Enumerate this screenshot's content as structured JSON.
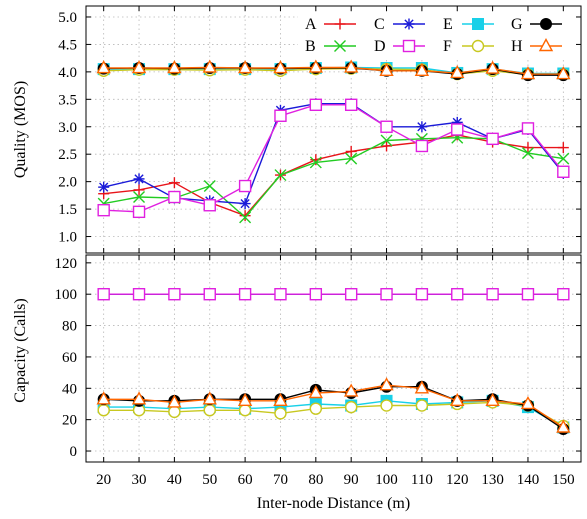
{
  "chart_data": [
    {
      "type": "line",
      "ylabel": "Quality (MOS)",
      "xlabel": "",
      "x": [
        20,
        30,
        40,
        50,
        60,
        70,
        80,
        90,
        100,
        110,
        120,
        130,
        140,
        150
      ],
      "xlim": [
        15,
        155
      ],
      "ylim": [
        0.7,
        5.2
      ],
      "yticks": [
        "1.0",
        "1.5",
        "2.0",
        "2.5",
        "3.0",
        "3.5",
        "4.0",
        "4.5",
        "5.0"
      ],
      "grid": true,
      "legend_position": "top-right",
      "series": [
        {
          "name": "A",
          "color": "#e8141a",
          "marker": "plus",
          "values": [
            1.78,
            1.85,
            1.98,
            1.62,
            1.38,
            2.12,
            2.4,
            2.55,
            2.65,
            2.72,
            2.85,
            2.72,
            2.62,
            2.62
          ]
        },
        {
          "name": "B",
          "color": "#22cc22",
          "marker": "x",
          "values": [
            1.6,
            1.72,
            1.7,
            1.92,
            1.35,
            2.12,
            2.35,
            2.42,
            2.75,
            2.78,
            2.8,
            2.78,
            2.52,
            2.42
          ]
        },
        {
          "name": "C",
          "color": "#1a1ad8",
          "marker": "star",
          "values": [
            1.9,
            2.05,
            1.7,
            1.65,
            1.6,
            3.3,
            3.42,
            3.42,
            3.0,
            3.0,
            3.08,
            2.78,
            2.95,
            2.15
          ]
        },
        {
          "name": "D",
          "color": "#e020e0",
          "marker": "square",
          "values": [
            1.48,
            1.45,
            1.72,
            1.57,
            1.92,
            3.2,
            3.4,
            3.4,
            3.0,
            2.65,
            2.95,
            2.78,
            2.97,
            2.18
          ]
        },
        {
          "name": "E",
          "color": "#18d0e8",
          "marker": "filled-square",
          "values": [
            4.05,
            4.05,
            4.05,
            4.05,
            4.05,
            4.05,
            4.07,
            4.08,
            4.07,
            4.07,
            3.98,
            4.05,
            3.97,
            3.97
          ]
        },
        {
          "name": "F",
          "color": "#c8c820",
          "marker": "circle",
          "values": [
            4.02,
            4.04,
            4.04,
            4.03,
            4.04,
            4.02,
            4.05,
            4.06,
            4.05,
            4.04,
            3.96,
            4.02,
            3.95,
            3.95
          ]
        },
        {
          "name": "G",
          "color": "#000000",
          "marker": "filled-circle",
          "values": [
            4.06,
            4.07,
            4.06,
            4.07,
            4.07,
            4.06,
            4.07,
            4.07,
            4.02,
            4.02,
            3.96,
            4.05,
            3.94,
            3.94
          ]
        },
        {
          "name": "H",
          "color": "#ff6600",
          "marker": "triangle",
          "values": [
            4.07,
            4.07,
            4.07,
            4.08,
            4.07,
            4.07,
            4.08,
            4.08,
            4.02,
            4.02,
            3.98,
            4.06,
            3.96,
            3.96
          ]
        }
      ]
    },
    {
      "type": "line",
      "ylabel": "Capacity (Calls)",
      "xlabel": "Inter-node Distance (m)",
      "x": [
        20,
        30,
        40,
        50,
        60,
        70,
        80,
        90,
        100,
        110,
        120,
        130,
        140,
        150
      ],
      "xticks": [
        "20",
        "30",
        "40",
        "50",
        "60",
        "70",
        "80",
        "90",
        "100",
        "110",
        "120",
        "130",
        "140",
        "150"
      ],
      "xlim": [
        15,
        155
      ],
      "ylim": [
        -7,
        125
      ],
      "yticks": [
        "0",
        "20",
        "40",
        "60",
        "80",
        "100",
        "120"
      ],
      "grid": true,
      "series": [
        {
          "name": "A",
          "color": "#e8141a",
          "marker": "plus",
          "values": [
            100,
            100,
            100,
            100,
            100,
            100,
            100,
            100,
            100,
            100,
            100,
            100,
            100,
            100
          ]
        },
        {
          "name": "B",
          "color": "#22cc22",
          "marker": "x",
          "values": [
            100,
            100,
            100,
            100,
            100,
            100,
            100,
            100,
            100,
            100,
            100,
            100,
            100,
            100
          ]
        },
        {
          "name": "C",
          "color": "#1a1ad8",
          "marker": "star",
          "values": [
            100,
            100,
            100,
            100,
            100,
            100,
            100,
            100,
            100,
            100,
            100,
            100,
            100,
            100
          ]
        },
        {
          "name": "D",
          "color": "#e020e0",
          "marker": "square",
          "values": [
            100,
            100,
            100,
            100,
            100,
            100,
            100,
            100,
            100,
            100,
            100,
            100,
            100,
            100
          ]
        },
        {
          "name": "E",
          "color": "#18d0e8",
          "marker": "filled-square",
          "values": [
            28,
            28,
            27,
            28,
            27,
            28,
            30,
            29,
            32,
            30,
            31,
            32,
            28,
            15
          ]
        },
        {
          "name": "F",
          "color": "#c8c820",
          "marker": "circle",
          "values": [
            26,
            26,
            25,
            26,
            26,
            24,
            27,
            28,
            29,
            29,
            30,
            31,
            29,
            16
          ]
        },
        {
          "name": "G",
          "color": "#000000",
          "marker": "filled-circle",
          "values": [
            33,
            32,
            32,
            33,
            33,
            33,
            39,
            37,
            41,
            41,
            32,
            33,
            29,
            14
          ]
        },
        {
          "name": "H",
          "color": "#ff6600",
          "marker": "triangle",
          "values": [
            33,
            33,
            31,
            33,
            32,
            32,
            37,
            38,
            42,
            40,
            32,
            32,
            30,
            15
          ]
        }
      ]
    }
  ]
}
